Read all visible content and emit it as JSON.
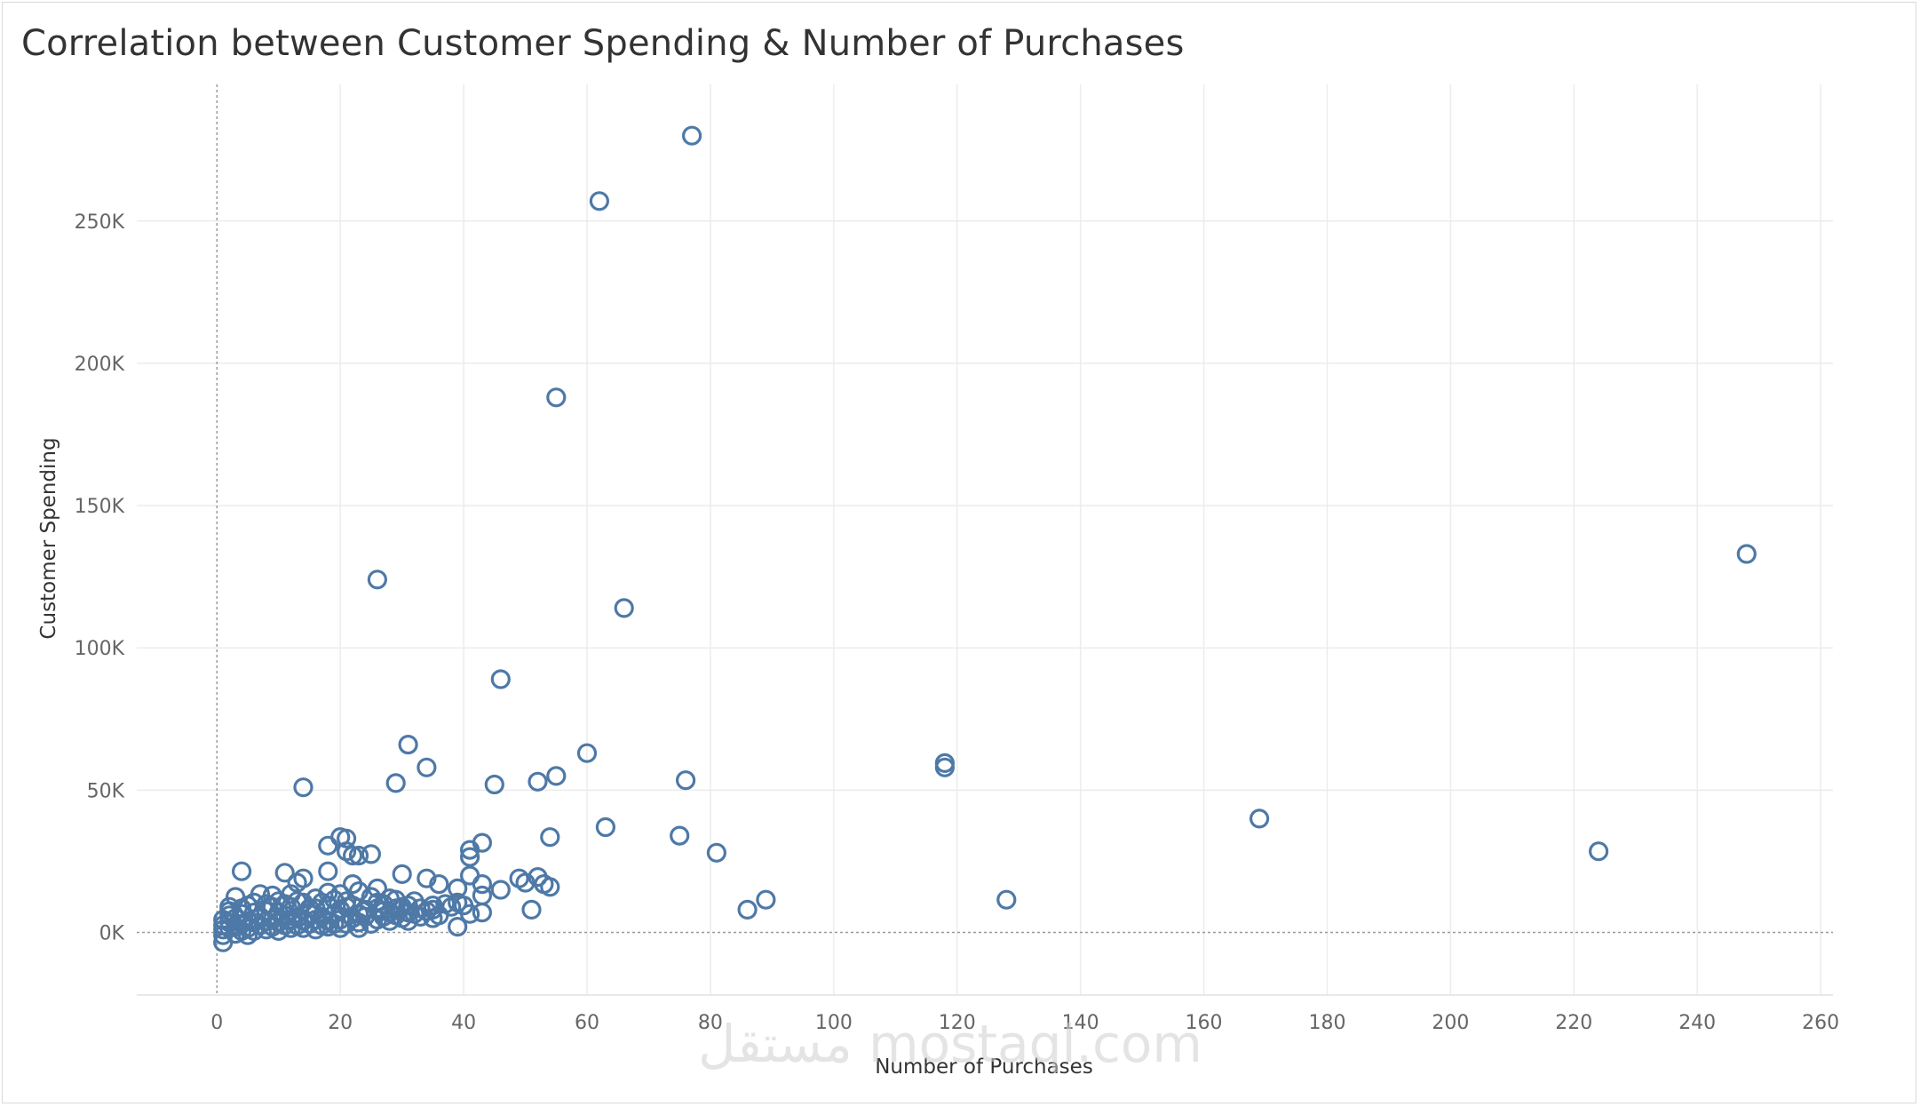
{
  "chart_data": {
    "type": "scatter",
    "title": "Correlation between Customer Spending & Number of Purchases",
    "xlabel": "Number of Purchases",
    "ylabel": "Customer Spending",
    "xlim": [
      -13,
      262
    ],
    "ylim": [
      -22000,
      298000
    ],
    "x_ticks": [
      0,
      20,
      40,
      60,
      80,
      100,
      120,
      140,
      160,
      180,
      200,
      220,
      240,
      260
    ],
    "y_ticks": [
      0,
      50000,
      100000,
      150000,
      200000,
      250000
    ],
    "y_tick_labels": [
      "0K",
      "50K",
      "100K",
      "150K",
      "200K",
      "250K"
    ],
    "grid": true,
    "marker": "hollow-circle",
    "series_color": "#4e79a7",
    "watermark": "مستقل mostaql.com",
    "points": [
      [
        77,
        280000
      ],
      [
        62,
        257000
      ],
      [
        55,
        188000
      ],
      [
        26,
        124000
      ],
      [
        66,
        114000
      ],
      [
        248,
        133000
      ],
      [
        46,
        89000
      ],
      [
        31,
        66000
      ],
      [
        60,
        63000
      ],
      [
        118,
        59500
      ],
      [
        118,
        58000
      ],
      [
        34,
        58000
      ],
      [
        76,
        53500
      ],
      [
        55,
        55000
      ],
      [
        52,
        53000
      ],
      [
        45,
        52000
      ],
      [
        29,
        52500
      ],
      [
        14,
        51000
      ],
      [
        169,
        40000
      ],
      [
        63,
        37000
      ],
      [
        75,
        34000
      ],
      [
        54,
        33500
      ],
      [
        81,
        28000
      ],
      [
        224,
        28500
      ],
      [
        43,
        31500
      ],
      [
        41,
        29000
      ],
      [
        41,
        26500
      ],
      [
        20,
        33500
      ],
      [
        21,
        33000
      ],
      [
        18,
        30500
      ],
      [
        21,
        28500
      ],
      [
        22,
        27000
      ],
      [
        23,
        27000
      ],
      [
        25,
        27500
      ],
      [
        4,
        21500
      ],
      [
        11,
        21000
      ],
      [
        18,
        21500
      ],
      [
        14,
        19000
      ],
      [
        13,
        17500
      ],
      [
        30,
        20500
      ],
      [
        34,
        19000
      ],
      [
        36,
        17000
      ],
      [
        41,
        20000
      ],
      [
        49,
        19000
      ],
      [
        52,
        19500
      ],
      [
        53,
        17000
      ],
      [
        54,
        16000
      ],
      [
        50,
        17500
      ],
      [
        46,
        15000
      ],
      [
        43,
        17000
      ],
      [
        39,
        15500
      ],
      [
        89,
        11500
      ],
      [
        86,
        8000
      ],
      [
        128,
        11500
      ],
      [
        51,
        8000
      ],
      [
        43,
        13000
      ],
      [
        39,
        10500
      ],
      [
        43,
        7000
      ],
      [
        41,
        6500
      ],
      [
        39,
        2000
      ],
      [
        35,
        8000
      ],
      [
        35,
        5000
      ],
      [
        32,
        11000
      ],
      [
        31,
        7000
      ],
      [
        28,
        12000
      ],
      [
        26,
        15500
      ],
      [
        22,
        17000
      ],
      [
        23,
        14500
      ],
      [
        20,
        13500
      ],
      [
        18,
        14000
      ],
      [
        16,
        12000
      ],
      [
        12,
        13500
      ],
      [
        9,
        13000
      ],
      [
        7,
        13500
      ],
      [
        3,
        12500
      ],
      [
        2,
        9000
      ],
      [
        5,
        9500
      ],
      [
        8,
        10000
      ],
      [
        10,
        11000
      ],
      [
        12,
        9000
      ],
      [
        14,
        10500
      ],
      [
        16,
        8500
      ],
      [
        18,
        9500
      ],
      [
        20,
        8000
      ],
      [
        22,
        9500
      ],
      [
        24,
        7500
      ],
      [
        26,
        8500
      ],
      [
        28,
        7000
      ],
      [
        30,
        9000
      ],
      [
        32,
        6500
      ],
      [
        34,
        7500
      ],
      [
        36,
        6000
      ],
      [
        27,
        10000
      ],
      [
        29,
        11500
      ],
      [
        25,
        12500
      ],
      [
        21,
        11000
      ],
      [
        19,
        6500
      ],
      [
        17,
        5500
      ],
      [
        15,
        6500
      ],
      [
        13,
        5000
      ],
      [
        11,
        6000
      ],
      [
        9,
        4500
      ],
      [
        7,
        5500
      ],
      [
        5,
        4000
      ],
      [
        3,
        5000
      ],
      [
        1,
        4500
      ],
      [
        1,
        2500
      ],
      [
        1,
        1000
      ],
      [
        1,
        -1000
      ],
      [
        1,
        -3500
      ],
      [
        2,
        1500
      ],
      [
        2,
        3500
      ],
      [
        2,
        6000
      ],
      [
        3,
        2000
      ],
      [
        4,
        3000
      ],
      [
        4,
        6500
      ],
      [
        5,
        1500
      ],
      [
        6,
        3500
      ],
      [
        6,
        7000
      ],
      [
        7,
        2500
      ],
      [
        8,
        4000
      ],
      [
        8,
        7500
      ],
      [
        9,
        2000
      ],
      [
        10,
        3500
      ],
      [
        10,
        7000
      ],
      [
        11,
        2500
      ],
      [
        12,
        4500
      ],
      [
        13,
        2500
      ],
      [
        14,
        4000
      ],
      [
        15,
        3000
      ],
      [
        15,
        8500
      ],
      [
        16,
        4500
      ],
      [
        17,
        2500
      ],
      [
        18,
        4000
      ],
      [
        19,
        3000
      ],
      [
        20,
        4500
      ],
      [
        21,
        3000
      ],
      [
        22,
        5000
      ],
      [
        23,
        3500
      ],
      [
        24,
        5500
      ],
      [
        25,
        3000
      ],
      [
        26,
        4500
      ],
      [
        27,
        5500
      ],
      [
        28,
        4000
      ],
      [
        29,
        6000
      ],
      [
        30,
        5000
      ],
      [
        31,
        4000
      ],
      [
        33,
        5500
      ],
      [
        23,
        1500
      ],
      [
        20,
        1500
      ],
      [
        16,
        1000
      ],
      [
        12,
        1500
      ],
      [
        8,
        1000
      ],
      [
        6,
        500
      ],
      [
        4,
        500
      ],
      [
        3,
        -500
      ],
      [
        5,
        -1000
      ],
      [
        10,
        500
      ],
      [
        14,
        1500
      ],
      [
        18,
        2000
      ],
      [
        24,
        8000
      ],
      [
        26,
        10500
      ],
      [
        13,
        11000
      ],
      [
        11,
        10000
      ],
      [
        6,
        10500
      ],
      [
        4,
        8500
      ],
      [
        2,
        7500
      ],
      [
        9,
        9000
      ],
      [
        17,
        10500
      ],
      [
        19,
        11500
      ],
      [
        21,
        9000
      ],
      [
        23,
        6500
      ],
      [
        27,
        7500
      ],
      [
        29,
        8500
      ],
      [
        31,
        9500
      ],
      [
        33,
        8500
      ],
      [
        35,
        9500
      ],
      [
        37,
        10000
      ],
      [
        38,
        9000
      ],
      [
        40,
        9500
      ]
    ]
  }
}
